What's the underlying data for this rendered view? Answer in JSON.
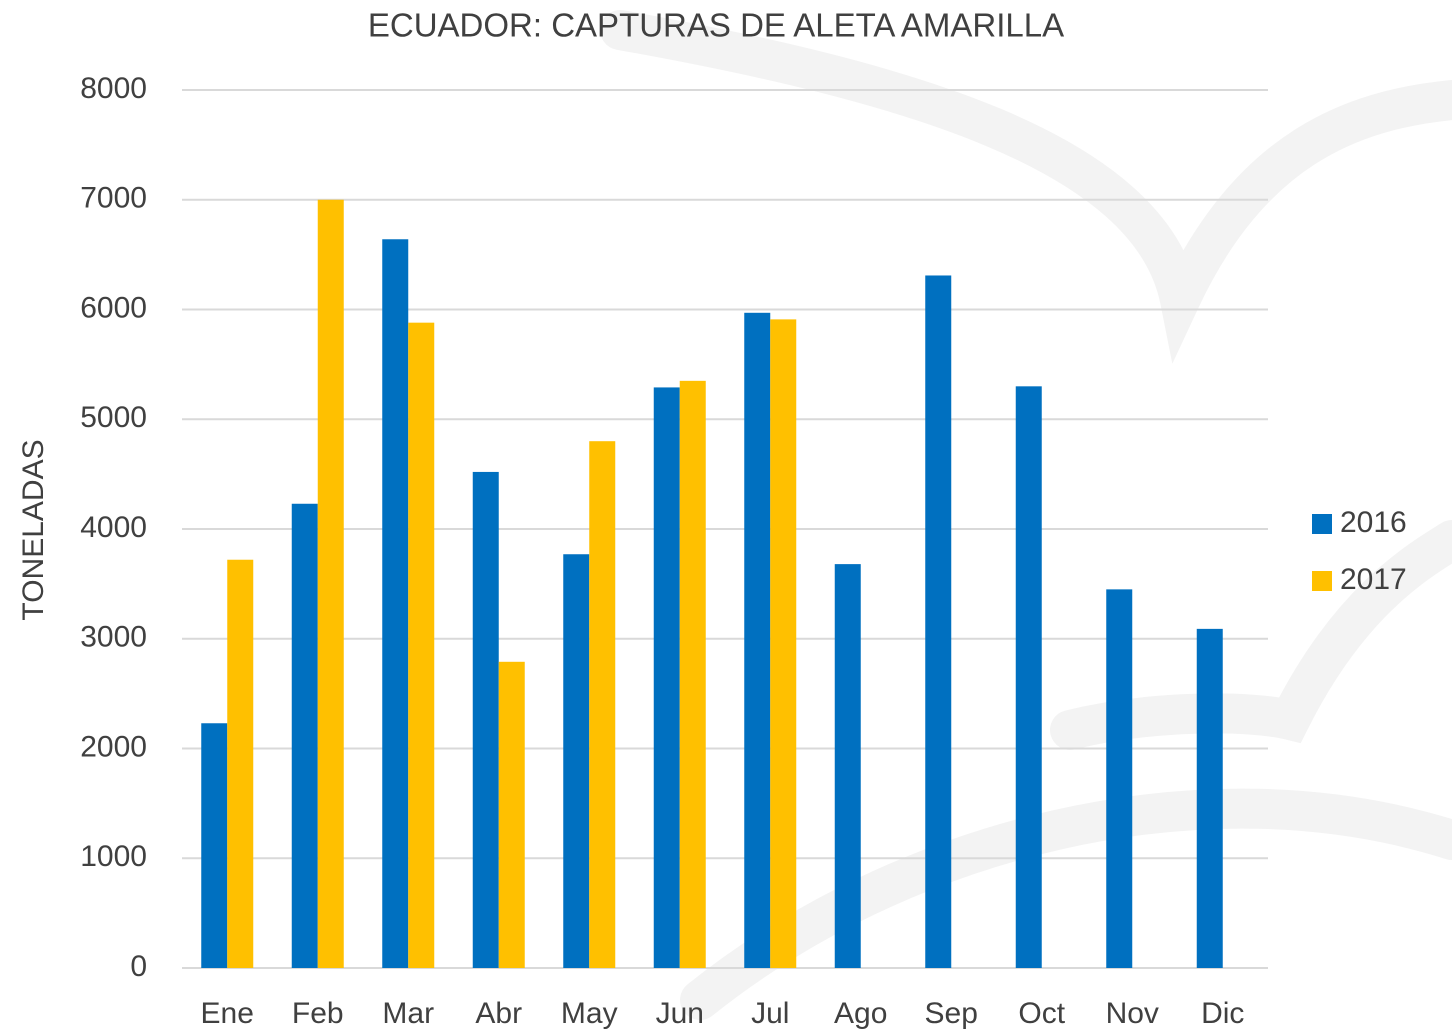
{
  "chart_data": {
    "type": "bar",
    "title": "ECUADOR: CAPTURAS DE ALETA AMARILLA",
    "y_label": "TONELADAS",
    "categories": [
      "Ene",
      "Feb",
      "Mar",
      "Abr",
      "May",
      "Jun",
      "Jul",
      "Ago",
      "Sep",
      "Oct",
      "Nov",
      "Dic"
    ],
    "series": [
      {
        "name": "2016",
        "color": "#0070c0",
        "values": [
          2230,
          4230,
          6640,
          4520,
          3770,
          5290,
          5970,
          3680,
          6310,
          5300,
          3450,
          3090
        ]
      },
      {
        "name": "2017",
        "color": "#ffc000",
        "values": [
          3720,
          7000,
          5880,
          2790,
          4800,
          5350,
          5910,
          null,
          null,
          null,
          null,
          null
        ]
      }
    ],
    "ylim": [
      0,
      8000
    ],
    "yticks": [
      0,
      1000,
      2000,
      3000,
      4000,
      5000,
      6000,
      7000,
      8000
    ],
    "grid": true,
    "legend": "right"
  }
}
